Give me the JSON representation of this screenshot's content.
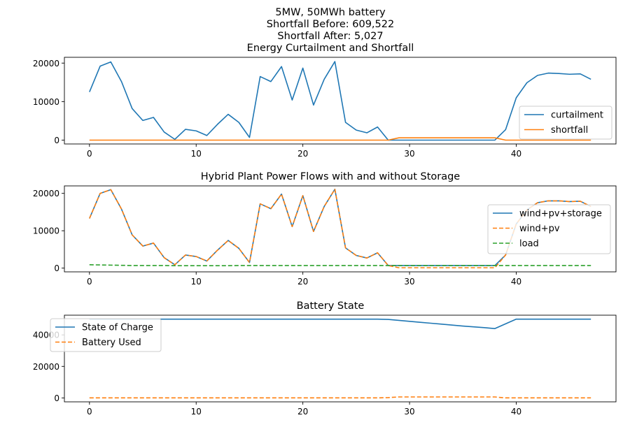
{
  "window": {
    "title_lines": [
      "5MW, 50MWh battery",
      "Shortfall Before: 609,522",
      "Shortfall After: 5,027",
      "Energy Curtailment and Shortfall"
    ]
  },
  "colors": {
    "blue": "#1f77b4",
    "orange": "#ff7f0e",
    "green": "#2ca02c"
  },
  "chart_data": [
    {
      "type": "line",
      "title": "Energy Curtailment and Shortfall",
      "xlim": [
        -2.35,
        49.35
      ],
      "ylim": [
        -1000,
        21500
      ],
      "xticks": [
        0,
        10,
        20,
        30,
        40
      ],
      "yticks": [
        0,
        10000,
        20000
      ],
      "legend_position": "lower-right",
      "grid": false,
      "x": [
        0,
        1,
        2,
        3,
        4,
        5,
        6,
        7,
        8,
        9,
        10,
        11,
        12,
        13,
        14,
        15,
        16,
        17,
        18,
        19,
        20,
        21,
        22,
        23,
        24,
        25,
        26,
        27,
        28,
        29,
        30,
        31,
        32,
        33,
        34,
        35,
        36,
        37,
        38,
        39,
        40,
        41,
        42,
        43,
        44,
        45,
        46,
        47
      ],
      "series": [
        {
          "name": "curtailment",
          "color": "#1f77b4",
          "dash": "solid",
          "values": [
            12500,
            19200,
            20300,
            15200,
            8200,
            5100,
            5900,
            2100,
            200,
            2800,
            2400,
            1200,
            4100,
            6700,
            4600,
            700,
            16500,
            15200,
            19100,
            10400,
            18700,
            9100,
            15800,
            20400,
            4600,
            2600,
            1900,
            3400,
            0,
            0,
            0,
            0,
            0,
            0,
            0,
            0,
            0,
            0,
            0,
            2700,
            11000,
            14900,
            16800,
            17400,
            17300,
            17100,
            17200,
            15800
          ]
        },
        {
          "name": "shortfall",
          "color": "#ff7f0e",
          "dash": "solid",
          "values": [
            0,
            0,
            0,
            0,
            0,
            0,
            0,
            0,
            0,
            0,
            0,
            0,
            0,
            0,
            0,
            0,
            0,
            0,
            0,
            0,
            0,
            0,
            0,
            0,
            0,
            0,
            0,
            0,
            0,
            600,
            600,
            600,
            600,
            600,
            600,
            600,
            600,
            600,
            600,
            0,
            0,
            0,
            0,
            0,
            0,
            0,
            0,
            0
          ]
        }
      ]
    },
    {
      "type": "line",
      "title": "Hybrid Plant Power Flows with and without Storage",
      "xlim": [
        -2.35,
        49.35
      ],
      "ylim": [
        -1000,
        22000
      ],
      "xticks": [
        0,
        10,
        20,
        30,
        40
      ],
      "yticks": [
        0,
        10000,
        20000
      ],
      "legend_position": "right",
      "grid": false,
      "x": [
        0,
        1,
        2,
        3,
        4,
        5,
        6,
        7,
        8,
        9,
        10,
        11,
        12,
        13,
        14,
        15,
        16,
        17,
        18,
        19,
        20,
        21,
        22,
        23,
        24,
        25,
        26,
        27,
        28,
        29,
        30,
        31,
        32,
        33,
        34,
        35,
        36,
        37,
        38,
        39,
        40,
        41,
        42,
        43,
        44,
        45,
        46,
        47
      ],
      "series": [
        {
          "name": "wind+pv+storage",
          "color": "#1f77b4",
          "dash": "solid",
          "values": [
            13300,
            20000,
            21000,
            15800,
            8900,
            5900,
            6700,
            2800,
            900,
            3500,
            3100,
            1900,
            4800,
            7400,
            5300,
            1500,
            17200,
            15900,
            19800,
            11100,
            19400,
            9800,
            16500,
            21100,
            5400,
            3400,
            2700,
            4100,
            700,
            700,
            700,
            700,
            700,
            700,
            700,
            700,
            700,
            700,
            700,
            3500,
            11800,
            15600,
            17500,
            18000,
            18000,
            17800,
            17900,
            16500
          ]
        },
        {
          "name": "wind+pv",
          "color": "#ff7f0e",
          "dash": "dashed",
          "values": [
            13300,
            20000,
            21000,
            15800,
            8900,
            5900,
            6700,
            2800,
            900,
            3500,
            3100,
            1900,
            4800,
            7400,
            5300,
            1500,
            17200,
            15900,
            19800,
            11100,
            19400,
            9800,
            16500,
            21100,
            5400,
            3400,
            2700,
            4100,
            700,
            100,
            100,
            100,
            100,
            100,
            100,
            100,
            100,
            100,
            100,
            3500,
            11800,
            15600,
            17500,
            18000,
            18000,
            17800,
            17900,
            16500
          ]
        },
        {
          "name": "load",
          "color": "#2ca02c",
          "dash": "dashed",
          "values": [
            900,
            850,
            800,
            750,
            700,
            700,
            700,
            700,
            650,
            650,
            650,
            650,
            650,
            650,
            700,
            700,
            700,
            700,
            700,
            700,
            700,
            700,
            700,
            700,
            700,
            700,
            700,
            700,
            700,
            700,
            700,
            700,
            700,
            700,
            700,
            700,
            700,
            700,
            700,
            700,
            700,
            700,
            700,
            700,
            700,
            700,
            700,
            700
          ]
        }
      ]
    },
    {
      "type": "line",
      "title": "Battery State",
      "xlim": [
        -2.35,
        49.35
      ],
      "ylim": [
        -2500,
        52500
      ],
      "xticks": [
        0,
        10,
        20,
        30,
        40
      ],
      "yticks": [
        0,
        20000,
        40000
      ],
      "legend_position": "upper-left",
      "grid": false,
      "x": [
        0,
        1,
        2,
        3,
        4,
        5,
        6,
        7,
        8,
        9,
        10,
        11,
        12,
        13,
        14,
        15,
        16,
        17,
        18,
        19,
        20,
        21,
        22,
        23,
        24,
        25,
        26,
        27,
        28,
        29,
        30,
        31,
        32,
        33,
        34,
        35,
        36,
        37,
        38,
        39,
        40,
        41,
        42,
        43,
        44,
        45,
        46,
        47
      ],
      "series": [
        {
          "name": "State of Charge",
          "color": "#1f77b4",
          "dash": "solid",
          "values": [
            50000,
            50000,
            50000,
            50000,
            50000,
            50000,
            50000,
            50000,
            50000,
            50000,
            50000,
            50000,
            50000,
            50000,
            50000,
            50000,
            50000,
            50000,
            50000,
            50000,
            50000,
            50000,
            50000,
            50000,
            50000,
            50000,
            50000,
            50000,
            49800,
            49200,
            48600,
            48000,
            47400,
            46800,
            46200,
            45600,
            45100,
            44600,
            44000,
            47000,
            50000,
            50000,
            50000,
            50000,
            50000,
            50000,
            50000,
            50000
          ]
        },
        {
          "name": "Battery Used",
          "color": "#ff7f0e",
          "dash": "dashed",
          "values": [
            0,
            0,
            0,
            0,
            0,
            0,
            0,
            0,
            0,
            0,
            0,
            0,
            0,
            0,
            0,
            0,
            0,
            0,
            0,
            0,
            0,
            0,
            0,
            0,
            0,
            0,
            0,
            0,
            200,
            600,
            600,
            600,
            600,
            600,
            600,
            600,
            600,
            600,
            600,
            0,
            0,
            0,
            0,
            0,
            0,
            0,
            0,
            0
          ]
        }
      ]
    }
  ]
}
